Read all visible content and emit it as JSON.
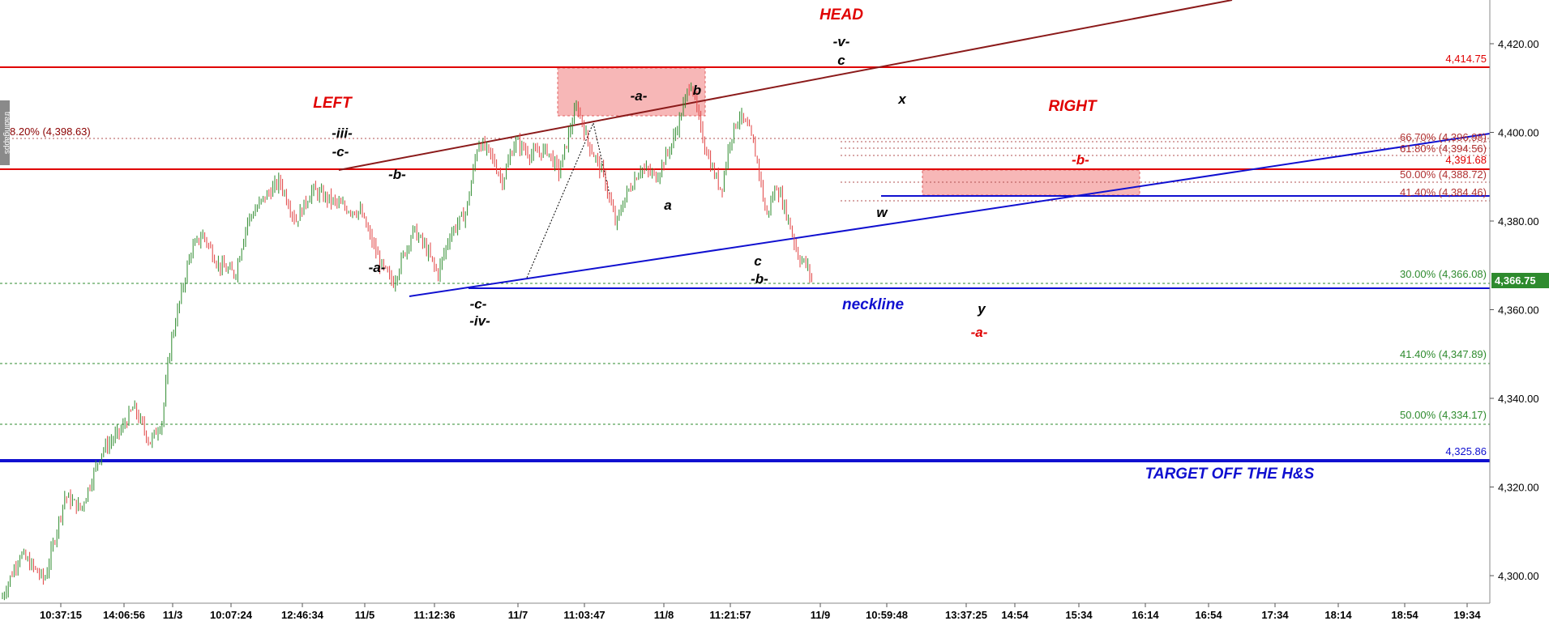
{
  "chart_data": {
    "type": "candlestick",
    "price_range": [
      4293,
      4430
    ],
    "y_ticks": [
      4300,
      4320,
      4340,
      4360,
      4380,
      4400,
      4420
    ],
    "y_tick_labels": [
      "4,300.00",
      "4,320.00",
      "4,340.00",
      "4,360.00",
      "4,380.00",
      "4,400.00",
      "4,420.00"
    ],
    "x_tick_labels": [
      "10:37:15",
      "14:06:56",
      "11/3",
      "10:07:24",
      "12:46:34",
      "11/5",
      "11:12:36",
      "11/7",
      "11:03:47",
      "11/8",
      "11:21:57",
      "11/9",
      "10:59:48",
      "13:37:25",
      "14:54",
      "15:34",
      "16:14",
      "16:54",
      "17:34",
      "18:14",
      "18:54",
      "19:34"
    ],
    "price_path": [
      [
        0,
        4294
      ],
      [
        25,
        4305
      ],
      [
        55,
        4299
      ],
      [
        80,
        4318
      ],
      [
        100,
        4315
      ],
      [
        125,
        4328
      ],
      [
        150,
        4333
      ],
      [
        165,
        4338
      ],
      [
        185,
        4330
      ],
      [
        200,
        4335
      ],
      [
        210,
        4352
      ],
      [
        235,
        4373
      ],
      [
        250,
        4377
      ],
      [
        270,
        4370
      ],
      [
        290,
        4368
      ],
      [
        305,
        4380
      ],
      [
        325,
        4385
      ],
      [
        345,
        4389
      ],
      [
        365,
        4380
      ],
      [
        385,
        4387
      ],
      [
        405,
        4385
      ],
      [
        425,
        4383
      ],
      [
        445,
        4382
      ],
      [
        470,
        4370
      ],
      [
        485,
        4366
      ],
      [
        495,
        4371
      ],
      [
        510,
        4378
      ],
      [
        525,
        4374
      ],
      [
        540,
        4368
      ],
      [
        555,
        4377
      ],
      [
        575,
        4382
      ],
      [
        590,
        4398
      ],
      [
        605,
        4395
      ],
      [
        620,
        4389
      ],
      [
        635,
        4398
      ],
      [
        655,
        4395
      ],
      [
        675,
        4396
      ],
      [
        690,
        4391
      ],
      [
        705,
        4402
      ],
      [
        712,
        4406
      ],
      [
        725,
        4398
      ],
      [
        745,
        4390
      ],
      [
        760,
        4379
      ],
      [
        770,
        4385
      ],
      [
        790,
        4392
      ],
      [
        810,
        4390
      ],
      [
        830,
        4398
      ],
      [
        845,
        4407
      ],
      [
        852,
        4412
      ],
      [
        865,
        4400
      ],
      [
        878,
        4392
      ],
      [
        890,
        4387
      ],
      [
        900,
        4398
      ],
      [
        912,
        4404
      ],
      [
        925,
        4400
      ],
      [
        935,
        4393
      ],
      [
        945,
        4381
      ],
      [
        958,
        4388
      ],
      [
        970,
        4382
      ],
      [
        985,
        4372
      ],
      [
        995,
        4370
      ],
      [
        1003,
        4366
      ]
    ],
    "last_price": "4,366.75",
    "levels": [
      {
        "label": "4,414.75",
        "color": "#e00000"
      },
      {
        "label": "66.70% (4,396.98)",
        "color": "#b03030"
      },
      {
        "label": "61.80% (4,394.56)",
        "color": "#b03030"
      },
      {
        "label": "4,391.68",
        "color": "#e00000"
      },
      {
        "label": "50.00% (4,388.72)",
        "color": "#b03030"
      },
      {
        "label": "41.40% (4,384.46)",
        "color": "#b03030"
      },
      {
        "label": "30.00% (4,366.08)",
        "color": "#2e8b2e"
      },
      {
        "label": "41.40% (4,347.89)",
        "color": "#2e8b2e"
      },
      {
        "label": "50.00% (4,334.17)",
        "color": "#2e8b2e"
      },
      {
        "label": "4,325.86",
        "color": "#1010d0"
      },
      {
        "label": "8.20% (4,398.63)",
        "color": "#8b0000"
      }
    ],
    "annotations": {
      "head": "HEAD",
      "left": "LEFT",
      "right": "RIGHT",
      "neckline": "neckline",
      "target": "TARGET OFF THE H&S",
      "waves": {
        "v": "-v-",
        "c_head": "c",
        "iii": "-iii-",
        "c_left": "-c-",
        "b_left": "-b-",
        "a_left": "-a-",
        "c_iv": "-c-",
        "iv": "-iv-",
        "a_box": "-a-",
        "b_box": "b",
        "a_mid": "a",
        "c_mid": "c",
        "b_mid": "-b-",
        "x": "x",
        "w": "w",
        "b_right": "-b-",
        "y": "y",
        "a_right": "-a-"
      }
    },
    "watermark": "tradingapps"
  },
  "colors": {
    "up": "#2e8b2e",
    "down": "#e04040",
    "red_line": "#e00000",
    "darkred": "#8b1a1a",
    "blue": "#1010d0",
    "green_dash": "#2e8b2e",
    "box_fill": "#f7b7b7",
    "badge": "#2e8b2e"
  }
}
